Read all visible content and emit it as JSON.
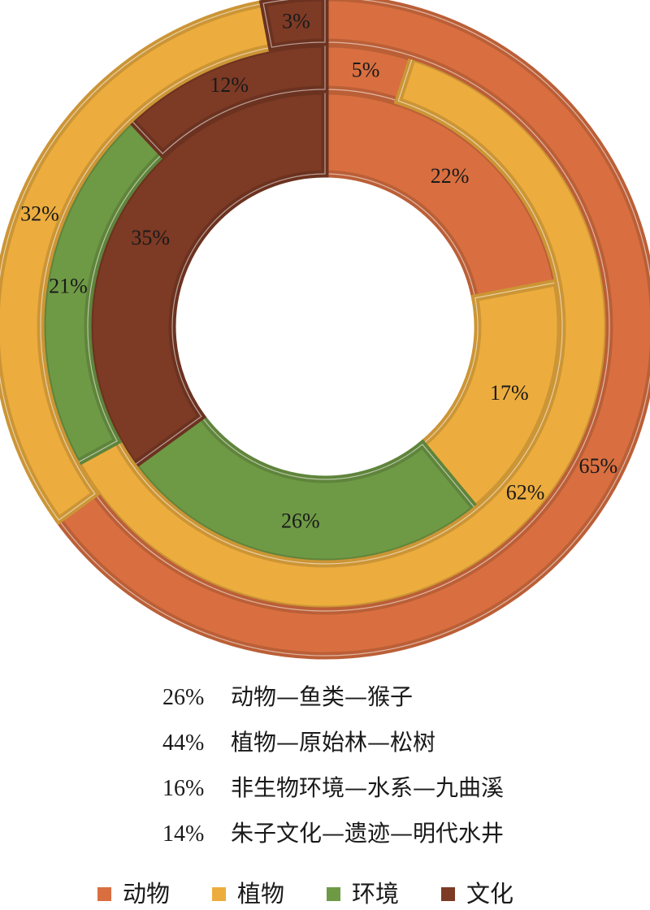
{
  "chart_data": {
    "type": "sunburst",
    "title": "",
    "colors": {
      "动物": "#D96F40",
      "植物": "#EDAD3E",
      "环境": "#6E9A45",
      "文化": "#7D3A25"
    },
    "rings": [
      {
        "ring": "inner",
        "slices": [
          {
            "category": "动物",
            "value": 22,
            "label": "22%"
          },
          {
            "category": "植物",
            "value": 17,
            "label": "17%"
          },
          {
            "category": "环境",
            "value": 26,
            "label": "26%"
          },
          {
            "category": "文化",
            "value": 35,
            "label": "35%"
          }
        ]
      },
      {
        "ring": "middle",
        "slices": [
          {
            "category": "动物",
            "value": 5,
            "label": "5%"
          },
          {
            "category": "植物",
            "value": 62,
            "label": "62%"
          },
          {
            "category": "环境",
            "value": 21,
            "label": "21%"
          },
          {
            "category": "文化",
            "value": 12,
            "label": "12%"
          }
        ]
      },
      {
        "ring": "outer",
        "slices": [
          {
            "category": "动物",
            "value": 65,
            "label": "65%"
          },
          {
            "category": "植物",
            "value": 32,
            "label": "32%"
          },
          {
            "category": "文化",
            "value": 3,
            "label": "3%"
          }
        ]
      }
    ],
    "notes": [
      {
        "pct": "26%",
        "text": "动物—鱼类—猴子"
      },
      {
        "pct": "44%",
        "text": "植物—原始林—松树"
      },
      {
        "pct": "16%",
        "text": "非生物环境—水系—九曲溪"
      },
      {
        "pct": "14%",
        "text": "朱子文化—遗迹—明代水井"
      }
    ],
    "legend": {
      "placement": "bottom",
      "entries": [
        {
          "label": "动物",
          "color": "#D96F40"
        },
        {
          "label": "植物",
          "color": "#EDAD3E"
        },
        {
          "label": "环境",
          "color": "#6E9A45"
        },
        {
          "label": "文化",
          "color": "#7D3A25"
        }
      ]
    }
  }
}
